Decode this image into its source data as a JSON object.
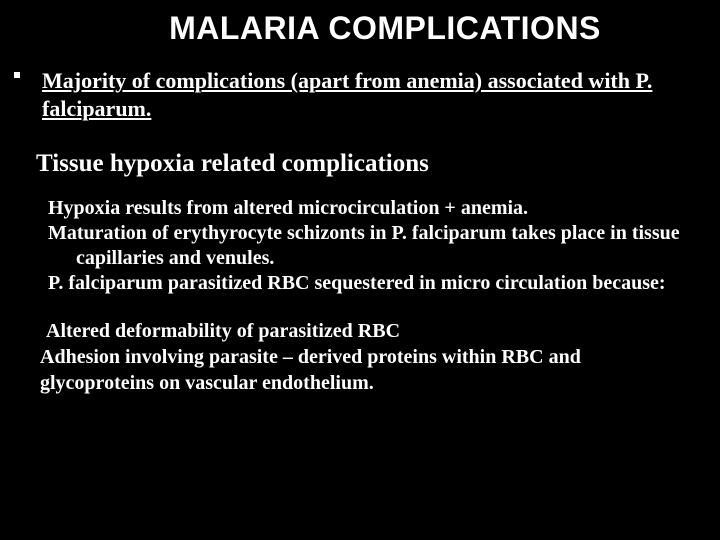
{
  "title": "MALARIA COMPLICATIONS",
  "intro": "Majority of complications (apart from anemia) associated with P. falciparum.",
  "subtitle": "Tissue hypoxia related complications",
  "body": {
    "l1": "Hypoxia results from altered microcirculation + anemia.",
    "l2": "Maturation of erythyrocyte schizonts in P. falciparum takes place in tissue capillaries and venules.",
    "l3": "P. falciparum parasitized RBC sequestered in micro circulation because:"
  },
  "closing": {
    "l1": "Altered deformability of parasitized RBC",
    "l2": "Adhesion involving parasite – derived proteins within RBC and glycoproteins on vascular endothelium."
  },
  "colors": {
    "background": "#000000",
    "text": "#ffffff"
  },
  "fonts": {
    "title_family": "Arial",
    "title_size_pt": 24,
    "title_weight": 900,
    "body_family": "Times New Roman",
    "intro_size_pt": 16,
    "subtitle_size_pt": 18,
    "body_size_pt": 15
  }
}
